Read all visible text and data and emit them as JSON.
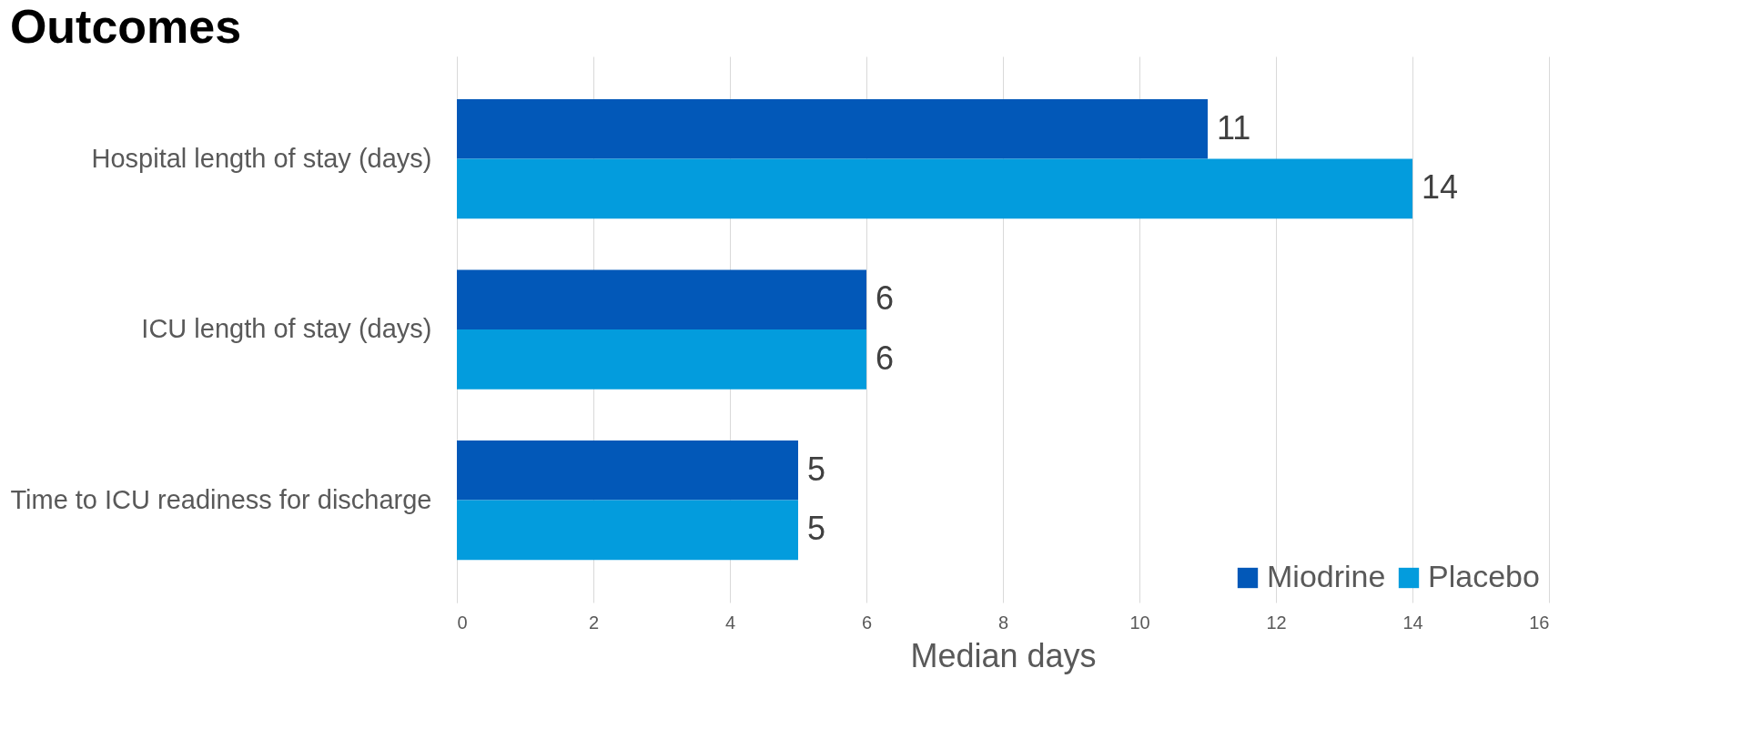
{
  "chart_data": {
    "type": "bar",
    "orientation": "horizontal",
    "title": "Outcomes",
    "xlabel": "Median days",
    "categories": [
      "Hospital length of stay (days)",
      "ICU length of stay (days)",
      "Time to ICU readiness for discharge"
    ],
    "series": [
      {
        "name": "Miodrine",
        "color": "#0258b8",
        "values": [
          11,
          6,
          5
        ]
      },
      {
        "name": "Placebo",
        "color": "#039cdd",
        "values": [
          14,
          6,
          5
        ]
      }
    ],
    "xlim": [
      0,
      16
    ],
    "xticks": [
      0,
      2,
      4,
      6,
      8,
      10,
      12,
      14,
      16
    ],
    "grid": "x",
    "legend": "bottom right",
    "data_labels": true
  }
}
